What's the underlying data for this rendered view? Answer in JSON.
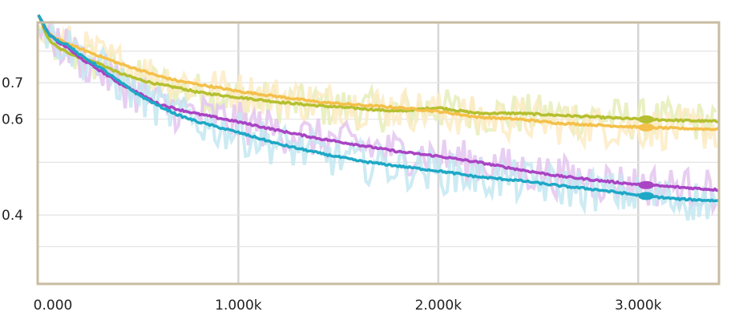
{
  "chart_data": {
    "type": "line",
    "title": "",
    "xlabel": "",
    "ylabel": "",
    "xlim": [
      0,
      3400
    ],
    "ylim": [
      0.3,
      0.9
    ],
    "y_scale": "log",
    "x_ticks": [
      {
        "value": 0,
        "label": "0.000"
      },
      {
        "value": 1000,
        "label": "1.000k"
      },
      {
        "value": 2000,
        "label": "2.000k"
      },
      {
        "value": 3000,
        "label": "3.000k"
      }
    ],
    "y_ticks": [
      {
        "value": 0.4,
        "label": "0.4"
      },
      {
        "value": 0.6,
        "label": "0.6"
      },
      {
        "value": 0.7,
        "label": "0.7"
      }
    ],
    "grid": true,
    "legend": "none",
    "frame_color": "#c8bca2",
    "hover_x": 3040,
    "series": [
      {
        "color": "#b5bf2f",
        "raw_color": "#e6edb8",
        "x": [
          0,
          50,
          100,
          200,
          300,
          400,
          500,
          600,
          700,
          800,
          900,
          1000,
          1200,
          1400,
          1600,
          1800,
          1950,
          2000,
          2100,
          2200,
          2400,
          2600,
          2800,
          3000,
          3200,
          3400
        ],
        "values": [
          0.93,
          0.84,
          0.81,
          0.78,
          0.76,
          0.73,
          0.71,
          0.695,
          0.685,
          0.672,
          0.665,
          0.658,
          0.645,
          0.635,
          0.628,
          0.62,
          0.628,
          0.63,
          0.622,
          0.615,
          0.615,
          0.61,
          0.605,
          0.6,
          0.597,
          0.594
        ]
      },
      {
        "color": "#f4c04a",
        "raw_color": "#fdebc4",
        "x": [
          0,
          50,
          100,
          200,
          300,
          400,
          500,
          600,
          700,
          800,
          900,
          1000,
          1200,
          1400,
          1600,
          1800,
          2000,
          2200,
          2400,
          2600,
          2800,
          3000,
          3200,
          3400
        ],
        "values": [
          0.93,
          0.86,
          0.84,
          0.81,
          0.785,
          0.76,
          0.74,
          0.72,
          0.705,
          0.695,
          0.685,
          0.675,
          0.66,
          0.645,
          0.637,
          0.63,
          0.62,
          0.605,
          0.6,
          0.59,
          0.585,
          0.58,
          0.577,
          0.575
        ]
      },
      {
        "color": "#a944c4",
        "raw_color": "#e4c6f0",
        "x": [
          0,
          50,
          100,
          150,
          200,
          300,
          400,
          500,
          600,
          700,
          800,
          900,
          1000,
          1200,
          1400,
          1600,
          1800,
          2000,
          2200,
          2400,
          2600,
          2800,
          3000,
          3200,
          3400
        ],
        "values": [
          0.93,
          0.86,
          0.83,
          0.81,
          0.78,
          0.74,
          0.7,
          0.67,
          0.64,
          0.625,
          0.613,
          0.603,
          0.593,
          0.572,
          0.553,
          0.538,
          0.523,
          0.513,
          0.5,
          0.485,
          0.472,
          0.463,
          0.455,
          0.45,
          0.445
        ]
      },
      {
        "color": "#1ea8c6",
        "raw_color": "#c4e8f1",
        "x": [
          0,
          50,
          100,
          150,
          200,
          300,
          400,
          500,
          600,
          700,
          800,
          900,
          1000,
          1200,
          1400,
          1600,
          1800,
          2000,
          2200,
          2400,
          2600,
          2800,
          3000,
          3200,
          3400
        ],
        "values": [
          0.93,
          0.86,
          0.835,
          0.82,
          0.79,
          0.75,
          0.705,
          0.665,
          0.635,
          0.61,
          0.593,
          0.58,
          0.567,
          0.54,
          0.52,
          0.503,
          0.492,
          0.482,
          0.47,
          0.463,
          0.453,
          0.445,
          0.435,
          0.428,
          0.425
        ]
      }
    ]
  }
}
